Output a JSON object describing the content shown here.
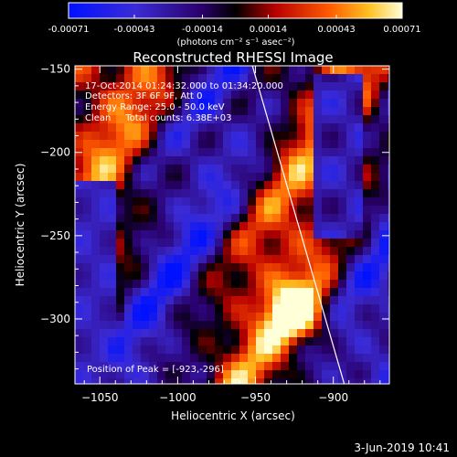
{
  "chart_data": {
    "type": "heatmap",
    "title": "Reconstructed RHESSI Image",
    "xlabel": "Heliocentric X (arcsec)",
    "ylabel": "Heliocentric Y (arcsec)",
    "xlim": [
      -1066,
      -1065.5
    ],
    "ylim": [
      -339,
      -148
    ],
    "x_range": [
      -1066,
      -864
    ],
    "x_ticks": [
      -1050,
      -1000,
      -950,
      -900
    ],
    "y_ticks": [
      -300,
      -250,
      -200,
      -150
    ],
    "colorbar": {
      "units": "(photons cm⁻² s⁻¹ asec⁻²)",
      "range": [
        -0.00071,
        0.00071
      ],
      "tick_values": [
        -0.00071,
        -0.00043,
        -0.00014,
        0.00014,
        0.00043,
        0.00071
      ],
      "tick_labels": [
        "-0.00071",
        "-0.00043",
        "-0.00014",
        "0.00014",
        "0.00043",
        "0.00071"
      ]
    },
    "annotations": [
      "17-Oct-2014 01:24:32.000 to 01:34:20.000",
      "Detectors: 3F 6F 9F, Att 0",
      "Energy Range: 25.0 - 50.0 keV",
      "Clean     Total counts: 6.38E+03"
    ],
    "peak_label": "Position of Peak = [-923,-296]",
    "peak": [
      -923,
      -296
    ],
    "limb_line": [
      [
        -952,
        -148
      ],
      [
        -893,
        -339
      ]
    ],
    "date_stamp": "3-Jun-2019 10:41"
  }
}
